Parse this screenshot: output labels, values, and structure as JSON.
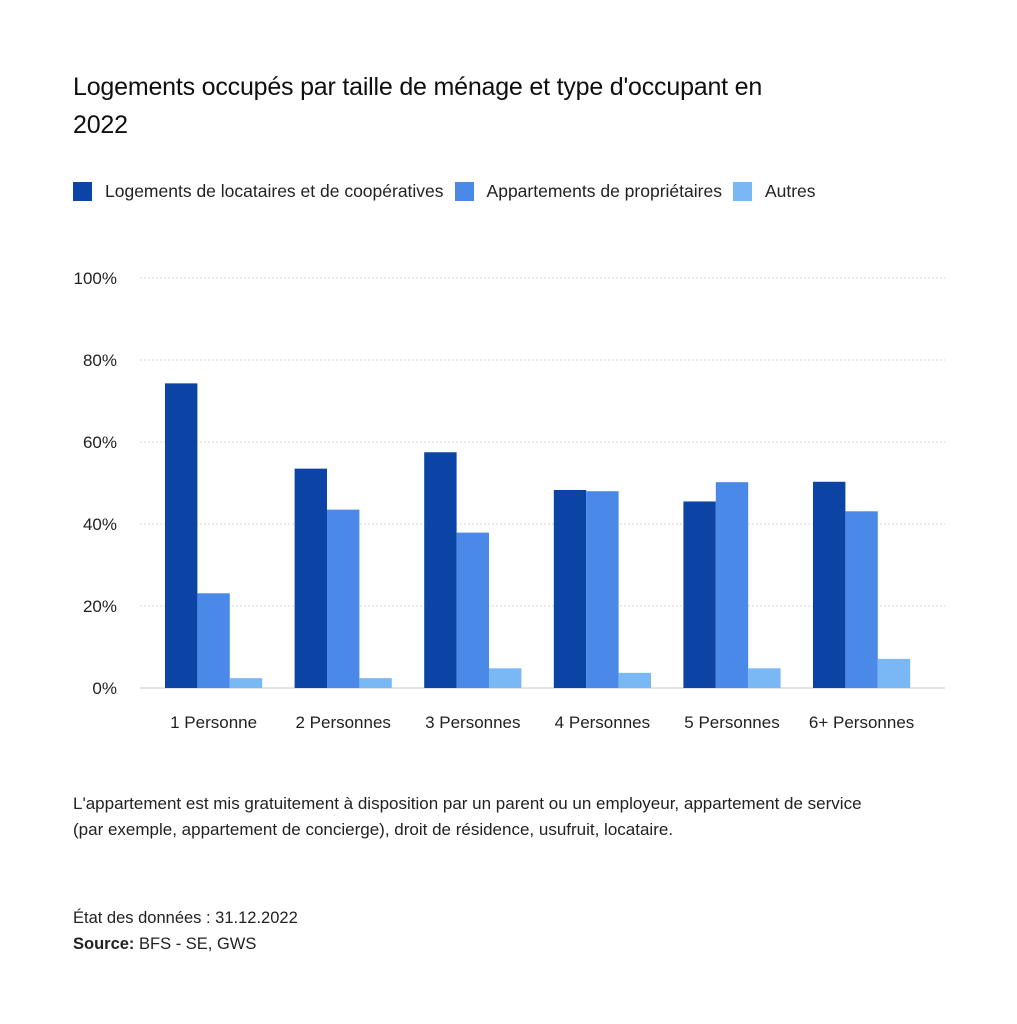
{
  "title": "Logements occupés par taille de ménage et type d'occupant en 2022",
  "legend": [
    {
      "label": "Logements de locataires et de coopératives",
      "color": "#0b44a5"
    },
    {
      "label": "Appartements de propriétaires",
      "color": "#4a89e8"
    },
    {
      "label": "Autres",
      "color": "#7ab8f5"
    }
  ],
  "chart_data": {
    "type": "bar",
    "categories": [
      "1 Personne",
      "2 Personnes",
      "3 Personnes",
      "4 Personnes",
      "5 Personnes",
      "6+ Personnes"
    ],
    "series": [
      {
        "name": "Logements de locataires et de coopératives",
        "values": [
          74.3,
          53.5,
          57.5,
          48.3,
          45.5,
          50.3
        ],
        "color": "#0b44a5"
      },
      {
        "name": "Appartements de propriétaires",
        "values": [
          23.1,
          43.5,
          37.9,
          48.0,
          50.2,
          43.1
        ],
        "color": "#4a89e8"
      },
      {
        "name": "Autres",
        "values": [
          2.4,
          2.4,
          4.8,
          3.7,
          4.8,
          7.1
        ],
        "color": "#7ab8f5"
      }
    ],
    "yticks": [
      "0%",
      "20%",
      "40%",
      "60%",
      "80%",
      "100%"
    ],
    "ylim": [
      0,
      100
    ],
    "grid": true,
    "legend_position": "top-left"
  },
  "note": "L'appartement est mis gratuitement à disposition par un parent ou un employeur, appartement de service (par exemple, appartement de concierge), droit de résidence, usufruit, locataire.",
  "date_label": "État des données : 31.12.2022",
  "source_label": "Source:",
  "source_value": "BFS - SE, GWS"
}
